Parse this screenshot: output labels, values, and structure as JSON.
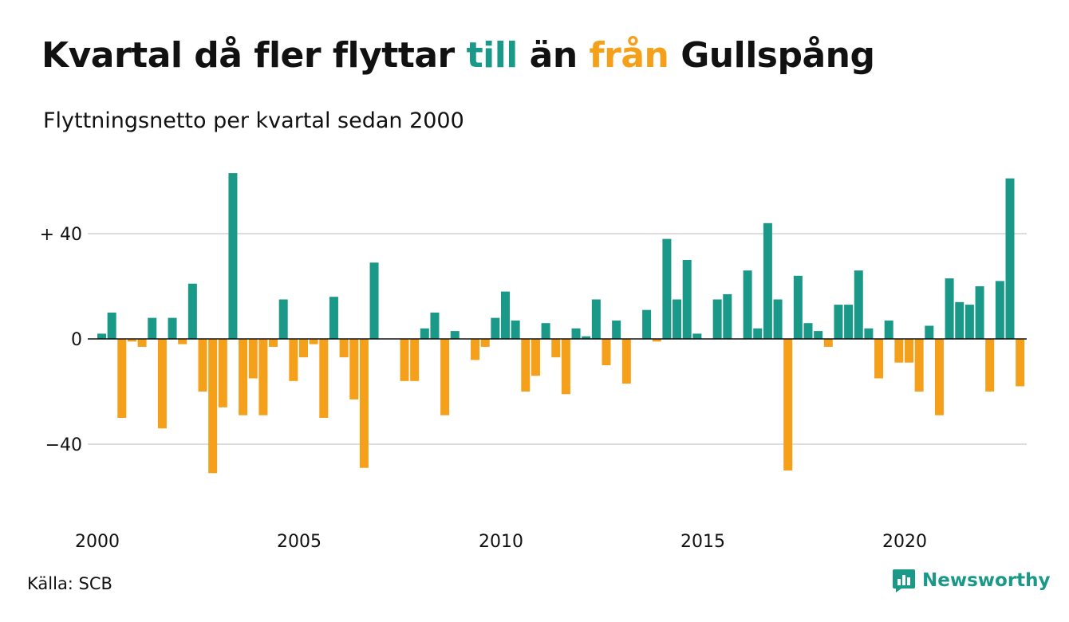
{
  "header": {
    "title_part1": "Kvartal då fler flyttar ",
    "title_pos": "till",
    "title_part2": " än ",
    "title_neg": "från",
    "title_part3": " Gullspång",
    "subtitle": "Flyttningsnetto per kvartal sedan 2000"
  },
  "footer": {
    "source": "Källa: SCB",
    "brand": "Newsworthy",
    "brand_icon": "bar-chart-icon"
  },
  "colors": {
    "positive": "#1a9988",
    "negative": "#f5a01a",
    "grid": "#dddddd",
    "zero_line": "#111111"
  },
  "chart_data": {
    "type": "bar",
    "title": "Kvartal då fler flyttar till än från Gullspång",
    "subtitle": "Flyttningsnetto per kvartal sedan 2000",
    "x_start": "2000 Q1",
    "x_ticks": [
      "2000",
      "2005",
      "2010",
      "2015",
      "2020"
    ],
    "y_ticks": [
      {
        "value": 40,
        "label": "+ 40"
      },
      {
        "value": 0,
        "label": "0"
      },
      {
        "value": -40,
        "label": "−40"
      }
    ],
    "ylim": [
      -60,
      65
    ],
    "grid": "horizontal",
    "series": [
      {
        "values": [
          2,
          10,
          -30,
          -1,
          -3,
          8,
          -34,
          8,
          -2,
          21,
          -20,
          -51,
          -26,
          63,
          -29,
          -15,
          -29,
          -3,
          15,
          -16,
          -7,
          -2,
          -30,
          16,
          -7,
          -23,
          -49,
          29,
          0,
          0,
          -16,
          -16,
          4,
          10,
          -29,
          3,
          0,
          -8,
          -3,
          8,
          18,
          7,
          -20,
          -14,
          6,
          -7,
          -21,
          4,
          1,
          15,
          -10,
          7,
          -17,
          0,
          11,
          -1,
          38,
          15,
          30,
          2,
          0,
          15,
          17,
          0,
          26,
          4,
          44,
          15,
          -50,
          24,
          6,
          3,
          -3,
          13,
          13,
          26,
          4,
          -15,
          7,
          -9,
          -9,
          -20,
          5,
          -29,
          23,
          14,
          13,
          20,
          -20,
          22,
          61,
          -18
        ]
      }
    ]
  }
}
